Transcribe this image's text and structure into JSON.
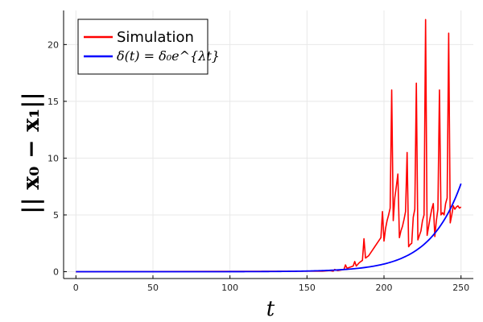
{
  "chart_data": {
    "type": "line",
    "xlabel": "t",
    "ylabel": "|| x₀ − x₁||",
    "xlim": [
      -8,
      258
    ],
    "ylim": [
      -0.6,
      23
    ],
    "xticks": [
      0,
      50,
      100,
      150,
      200,
      250
    ],
    "yticks": [
      0,
      5,
      10,
      15,
      20
    ],
    "grid": true,
    "legend_position": "top-left",
    "colors": {
      "simulation": "#ff0000",
      "model": "#0000ff"
    },
    "series": [
      {
        "name": "Simulation",
        "color": "#ff0000",
        "x": [
          0,
          160,
          165,
          167,
          168,
          170,
          172,
          174,
          175,
          176,
          178,
          180,
          181,
          182,
          184,
          186,
          187,
          188,
          190,
          192,
          194,
          196,
          198,
          199,
          200,
          201,
          202,
          203,
          204,
          205,
          206,
          207,
          208,
          209,
          210,
          211,
          212,
          213,
          214,
          215,
          216,
          217,
          218,
          219,
          220,
          221,
          222,
          223,
          224,
          225,
          226,
          227,
          228,
          229,
          230,
          231,
          232,
          233,
          234,
          235,
          236,
          237,
          238,
          239,
          240,
          241,
          242,
          243,
          244,
          245,
          246,
          247,
          248,
          249,
          250
        ],
        "y": [
          0,
          0.05,
          0.1,
          0.05,
          0.2,
          0.1,
          0.15,
          0.2,
          0.6,
          0.3,
          0.4,
          0.5,
          0.9,
          0.5,
          0.8,
          1.0,
          2.9,
          1.2,
          1.4,
          1.8,
          2.2,
          2.6,
          3.0,
          5.3,
          2.7,
          3.8,
          4.5,
          5.0,
          5.6,
          16.0,
          4.5,
          6.5,
          7.5,
          8.6,
          3.0,
          3.6,
          4.0,
          4.6,
          5.3,
          10.5,
          2.2,
          2.4,
          2.5,
          4.8,
          5.5,
          16.6,
          2.8,
          3.2,
          3.6,
          4.5,
          5.0,
          22.2,
          3.2,
          4.0,
          4.8,
          5.5,
          6.0,
          3.1,
          4.5,
          5.5,
          16.0,
          5.0,
          5.2,
          5.0,
          6.0,
          6.5,
          21.0,
          4.3,
          5.0,
          5.8,
          5.5,
          5.7,
          5.8,
          5.6,
          5.7
        ]
      },
      {
        "name": "δ(t) = δ₀e^{λt}",
        "color": "#0000ff",
        "function": "exp",
        "delta0": 4e-05,
        "lambda": 0.0487,
        "x_range": [
          0,
          250
        ]
      }
    ],
    "legend": [
      "Simulation",
      "δ(t) = δ₀e^{λt}"
    ]
  }
}
